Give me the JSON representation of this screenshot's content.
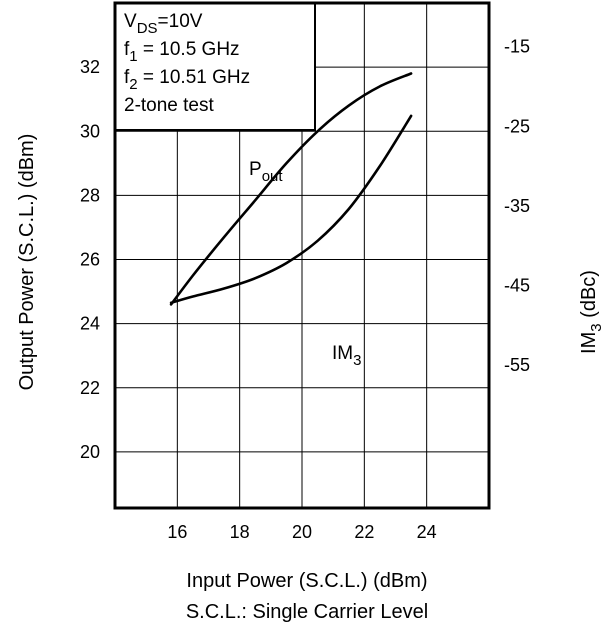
{
  "chart_data": {
    "type": "line",
    "xlabel": "Input Power (S.C.L.) (dBm)",
    "xlabel_note": "S.C.L.: Single Carrier Level",
    "ylabel": "Output Power (S.C.L.) (dBm)",
    "ylabel_right": {
      "text": "IM",
      "sub": "3",
      "suffix": " (dBc)"
    },
    "xlim": [
      14,
      26
    ],
    "ylim": [
      18.25,
      34
    ],
    "ylim_right": [
      -73,
      -9.5
    ],
    "x_ticks": [
      16,
      18,
      20,
      22,
      24
    ],
    "y_ticks": [
      20,
      22,
      24,
      26,
      28,
      30,
      32
    ],
    "y_ticks_right": [
      -55,
      -45,
      -35,
      -25,
      -15
    ],
    "grid": true,
    "conditions": [
      {
        "main": "V",
        "sub": "DS",
        "rest": "=10V"
      },
      {
        "main": "f",
        "sub": "1",
        "rest": " = 10.5 GHz"
      },
      {
        "main": "f",
        "sub": "2",
        "rest": " = 10.51 GHz"
      },
      {
        "main": "2-tone test",
        "sub": "",
        "rest": ""
      }
    ],
    "series": [
      {
        "name": "P",
        "name_sub": "out",
        "axis": "left",
        "x": [
          15.8,
          16.5,
          17.5,
          18.5,
          19.5,
          20.5,
          21.5,
          22.5,
          23.5
        ],
        "y": [
          24.6,
          25.5,
          26.7,
          27.85,
          29.0,
          30.0,
          30.8,
          31.4,
          31.8
        ]
      },
      {
        "name": "IM",
        "name_sub": "3",
        "axis": "right",
        "x": [
          15.8,
          16.5,
          17.5,
          18.5,
          19.5,
          20.5,
          21.5,
          22.5,
          23.5
        ],
        "y": [
          -47.2,
          -46.4,
          -45.4,
          -44.1,
          -42.2,
          -39.4,
          -35.4,
          -30.0,
          -23.7
        ]
      }
    ]
  }
}
